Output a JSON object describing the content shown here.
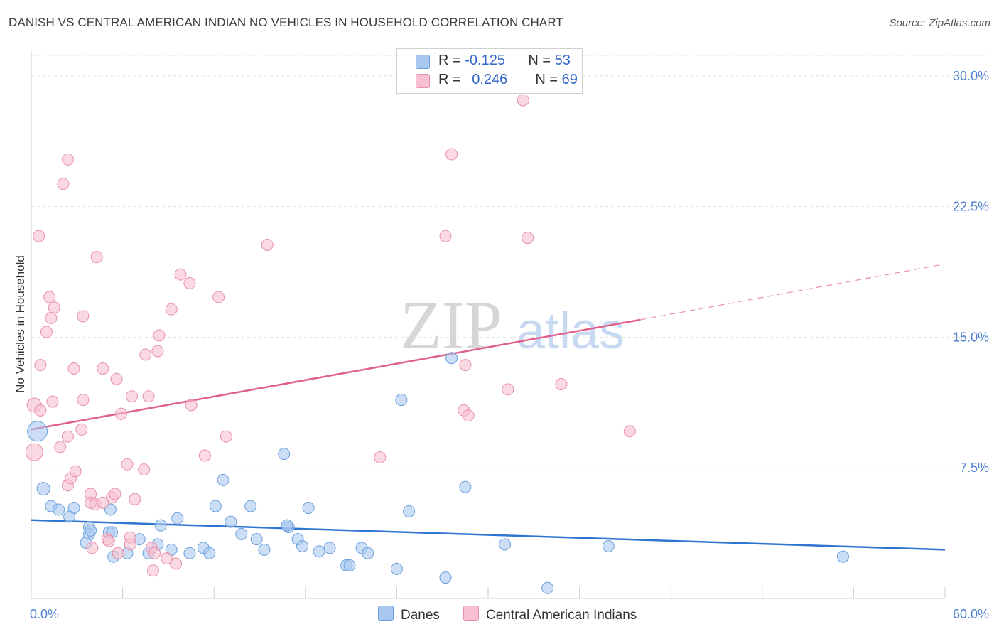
{
  "title": "DANISH VS CENTRAL AMERICAN INDIAN NO VEHICLES IN HOUSEHOLD CORRELATION CHART",
  "source": "Source: ZipAtlas.com",
  "watermark": {
    "zip": "ZIP",
    "atlas": "atlas"
  },
  "legend_top": [
    {
      "r_label": "R =",
      "r_value": "-0.125",
      "n_label": "N =",
      "n_value": "53",
      "color": "#a8c8f0",
      "border": "#6a9fdc"
    },
    {
      "r_label": "R =",
      "r_value": "0.246",
      "n_label": "N =",
      "n_value": "69",
      "color": "#f8c0d0",
      "border": "#e890aa"
    }
  ],
  "legend_bottom": [
    {
      "label": "Danes",
      "color": "#a8c8f0",
      "border": "#6a9fdc"
    },
    {
      "label": "Central American Indians",
      "color": "#f8c0d0",
      "border": "#e890aa"
    }
  ],
  "chart_data": {
    "type": "scatter",
    "ylabel": "No Vehicles in Household",
    "xlim": [
      0,
      60
    ],
    "ylim": [
      0,
      31.5
    ],
    "x_tick_labels": [
      {
        "value": 0,
        "label": "0.0%"
      },
      {
        "value": 60,
        "label": "60.0%"
      }
    ],
    "y_tick_labels": [
      {
        "value": 7.5,
        "label": "7.5%"
      },
      {
        "value": 15,
        "label": "15.0%"
      },
      {
        "value": 22.5,
        "label": "22.5%"
      },
      {
        "value": 30,
        "label": "30.0%"
      }
    ],
    "grid": true,
    "series": [
      {
        "name": "Danes",
        "color": "#6a9fdc",
        "fill": "#a8c8f0",
        "trend": {
          "x0": 0,
          "y0": 4.5,
          "x1": 60,
          "y1": 2.8
        },
        "points": [
          [
            0.4,
            9.6,
            14
          ],
          [
            0.8,
            6.3,
            9
          ],
          [
            1.3,
            5.3,
            8
          ],
          [
            1.8,
            5.1,
            8
          ],
          [
            2.8,
            5.2,
            8
          ],
          [
            2.5,
            4.7,
            8
          ],
          [
            3.8,
            4.1,
            8
          ],
          [
            3.8,
            3.7,
            8
          ],
          [
            3.6,
            3.2,
            8
          ],
          [
            3.9,
            3.9,
            8
          ],
          [
            5.1,
            3.8,
            8
          ],
          [
            5.3,
            3.8,
            8
          ],
          [
            5.2,
            5.1,
            8
          ],
          [
            5.4,
            2.4,
            8
          ],
          [
            7.1,
            3.4,
            8
          ],
          [
            7.7,
            2.6,
            8
          ],
          [
            8.5,
            4.2,
            8
          ],
          [
            9.6,
            4.6,
            8
          ],
          [
            9.2,
            2.8,
            8
          ],
          [
            10.4,
            2.6,
            8
          ],
          [
            11.3,
            2.9,
            8
          ],
          [
            11.7,
            2.6,
            8
          ],
          [
            12.1,
            5.3,
            8
          ],
          [
            12.6,
            6.8,
            8
          ],
          [
            13.1,
            4.4,
            8
          ],
          [
            13.8,
            3.7,
            8
          ],
          [
            14.4,
            5.3,
            8
          ],
          [
            14.8,
            3.4,
            8
          ],
          [
            15.3,
            2.8,
            8
          ],
          [
            16.6,
            8.3,
            8
          ],
          [
            16.9,
            4.1,
            8
          ],
          [
            17.5,
            3.4,
            8
          ],
          [
            17.8,
            3.0,
            8
          ],
          [
            18.2,
            5.2,
            8
          ],
          [
            18.9,
            2.7,
            8
          ],
          [
            19.6,
            2.9,
            8
          ],
          [
            20.7,
            1.9,
            8
          ],
          [
            20.9,
            1.9,
            8
          ],
          [
            21.7,
            2.9,
            8
          ],
          [
            22.1,
            2.6,
            8
          ],
          [
            24.3,
            11.4,
            8
          ],
          [
            24.0,
            1.7,
            8
          ],
          [
            24.8,
            5.0,
            8
          ],
          [
            27.2,
            1.2,
            8
          ],
          [
            28.5,
            6.4,
            8
          ],
          [
            27.6,
            13.8,
            8
          ],
          [
            31.1,
            3.1,
            8
          ],
          [
            33.9,
            0.6,
            8
          ],
          [
            37.9,
            3.0,
            8
          ],
          [
            53.3,
            2.4,
            8
          ],
          [
            8.3,
            3.1,
            8
          ],
          [
            6.3,
            2.6,
            8
          ],
          [
            16.8,
            4.2,
            8
          ]
        ]
      },
      {
        "name": "Central American Indians",
        "color": "#e890aa",
        "fill": "#f8c0d0",
        "trend": {
          "x0": 0,
          "y0": 9.7,
          "x1": 40,
          "y1": 16.0
        },
        "trend_dashed": {
          "x0": 40,
          "y0": 16.0,
          "x1": 60,
          "y1": 19.2
        },
        "points": [
          [
            0.2,
            8.4,
            12
          ],
          [
            0.2,
            11.1,
            10
          ],
          [
            0.6,
            10.8,
            8
          ],
          [
            0.5,
            20.8,
            8
          ],
          [
            1.2,
            17.3,
            8
          ],
          [
            1.5,
            16.7,
            8
          ],
          [
            1.3,
            16.1,
            8
          ],
          [
            1.0,
            15.3,
            8
          ],
          [
            0.6,
            13.4,
            8
          ],
          [
            1.4,
            11.3,
            8
          ],
          [
            1.9,
            8.7,
            8
          ],
          [
            2.1,
            23.8,
            8
          ],
          [
            2.4,
            25.2,
            8
          ],
          [
            2.4,
            6.5,
            8
          ],
          [
            2.4,
            9.3,
            8
          ],
          [
            2.8,
            13.2,
            8
          ],
          [
            2.6,
            6.9,
            8
          ],
          [
            2.9,
            7.3,
            8
          ],
          [
            3.4,
            16.2,
            8
          ],
          [
            3.4,
            11.4,
            8
          ],
          [
            3.3,
            9.7,
            8
          ],
          [
            3.9,
            6.0,
            8
          ],
          [
            3.9,
            5.5,
            8
          ],
          [
            4.0,
            2.9,
            8
          ],
          [
            4.2,
            5.4,
            8
          ],
          [
            4.3,
            19.6,
            8
          ],
          [
            4.7,
            13.2,
            8
          ],
          [
            4.7,
            5.5,
            8
          ],
          [
            5.0,
            3.4,
            8
          ],
          [
            5.1,
            3.3,
            8
          ],
          [
            5.3,
            5.8,
            8
          ],
          [
            5.5,
            6.0,
            8
          ],
          [
            5.6,
            12.6,
            8
          ],
          [
            5.9,
            10.6,
            8
          ],
          [
            5.7,
            2.6,
            8
          ],
          [
            6.3,
            7.7,
            8
          ],
          [
            6.5,
            3.5,
            8
          ],
          [
            6.5,
            3.1,
            8
          ],
          [
            6.6,
            11.6,
            8
          ],
          [
            6.8,
            5.7,
            8
          ],
          [
            7.5,
            14.0,
            8
          ],
          [
            7.4,
            7.4,
            8
          ],
          [
            7.7,
            11.6,
            8
          ],
          [
            7.9,
            2.9,
            8
          ],
          [
            8.0,
            1.6,
            8
          ],
          [
            8.1,
            2.6,
            8
          ],
          [
            8.3,
            14.2,
            8
          ],
          [
            8.4,
            15.1,
            8
          ],
          [
            8.9,
            2.3,
            8
          ],
          [
            9.2,
            16.6,
            8
          ],
          [
            9.5,
            2.0,
            8
          ],
          [
            9.8,
            18.6,
            8
          ],
          [
            10.4,
            18.1,
            8
          ],
          [
            10.5,
            11.1,
            8
          ],
          [
            11.4,
            8.2,
            8
          ],
          [
            12.3,
            17.3,
            8
          ],
          [
            12.8,
            9.3,
            8
          ],
          [
            15.5,
            20.3,
            8
          ],
          [
            22.9,
            8.1,
            8
          ],
          [
            27.2,
            20.8,
            8
          ],
          [
            27.6,
            25.5,
            8
          ],
          [
            28.5,
            13.4,
            8
          ],
          [
            28.4,
            10.8,
            8
          ],
          [
            28.7,
            10.5,
            8
          ],
          [
            31.3,
            12.0,
            8
          ],
          [
            32.6,
            20.7,
            8
          ],
          [
            34.8,
            12.3,
            8
          ],
          [
            39.3,
            9.6,
            8
          ],
          [
            32.3,
            28.6,
            8
          ]
        ]
      }
    ]
  }
}
